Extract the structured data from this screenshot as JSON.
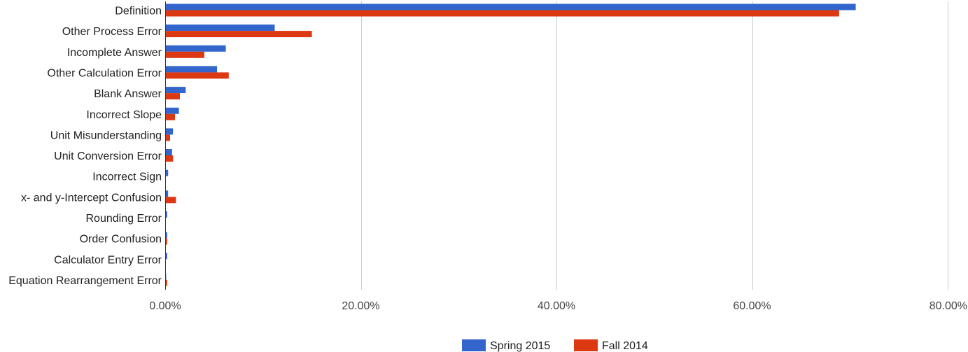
{
  "chart_data": {
    "type": "bar",
    "orientation": "horizontal",
    "categories": [
      "Definition",
      "Other Process Error",
      "Incomplete Answer",
      "Other Calculation Error",
      "Blank Answer",
      "Incorrect Slope",
      "Unit Misunderstanding",
      "Unit Conversion Error",
      "Incorrect Sign",
      "x- and y-Intercept Confusion",
      "Rounding Error",
      "Order Confusion",
      "Calculator Entry Error",
      "Equation Rearrangement Error"
    ],
    "series": [
      {
        "name": "Spring 2015",
        "color": "#3366cc",
        "values": [
          70.6,
          11.2,
          6.2,
          5.3,
          2.1,
          1.4,
          0.8,
          0.7,
          0.3,
          0.3,
          0.2,
          0.2,
          0.2,
          0.1
        ]
      },
      {
        "name": "Fall 2014",
        "color": "#dc3912",
        "values": [
          68.9,
          15.0,
          4.0,
          6.5,
          1.5,
          1.0,
          0.5,
          0.8,
          0.0,
          1.1,
          0.0,
          0.2,
          0.0,
          0.2
        ]
      }
    ],
    "xlim": [
      0,
      80
    ],
    "x_ticks": [
      "0.00%",
      "20.00%",
      "40.00%",
      "60.00%",
      "80.00%"
    ],
    "x_tick_values": [
      0,
      20,
      40,
      60,
      80
    ],
    "title": "",
    "xlabel": "",
    "ylabel": "",
    "grid": true,
    "legend_position": "bottom",
    "gridline_color": "#cccccc"
  }
}
